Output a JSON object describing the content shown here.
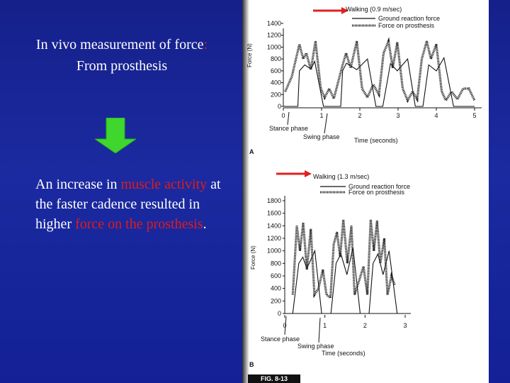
{
  "slide": {
    "title_part1": "In vivo measurement of force",
    "title_colon": ":",
    "title_line2": "From prosthesis",
    "body_white1": "An increase in ",
    "body_red1": "muscle activity",
    "body_white2": " at the faster cadence resulted in higher ",
    "body_red2": "force on the prosthesis",
    "body_white3": ".",
    "colors": {
      "background": "#1b2aa0",
      "text": "#ffffff",
      "highlight": "#e01c1c",
      "arrow": "#3fd62e"
    }
  },
  "figure": {
    "label": "FIG. 8-13",
    "panels": [
      {
        "panel_letter": "A",
        "title": "Walking (0.9 m/sec)",
        "legend": [
          "Ground reaction force",
          "Force on prosthesis"
        ],
        "ylabel": "Force (N)",
        "xlabel": "Time (seconds)",
        "y_ticks": [
          "1400",
          "1200",
          "1000",
          "800",
          "600",
          "400",
          "200",
          "0"
        ],
        "x_ticks": [
          "0",
          "1",
          "2",
          "3",
          "4",
          "5"
        ],
        "annotations": [
          "Stance phase",
          "Swing phase"
        ]
      },
      {
        "panel_letter": "B",
        "title": "Walking (1.3 m/sec)",
        "legend": [
          "Ground reaction force",
          "Force on prosthesis"
        ],
        "ylabel": "Force (N)",
        "xlabel": "Time (seconds)",
        "y_ticks": [
          "1800",
          "1600",
          "1400",
          "1200",
          "1000",
          "800",
          "600",
          "400",
          "200",
          "0"
        ],
        "x_ticks": [
          "0",
          "1",
          "2",
          "3"
        ],
        "annotations": [
          "Stance phase",
          "Swing phase"
        ]
      }
    ],
    "chart_data": [
      {
        "type": "line",
        "title": "Walking (0.9 m/sec)",
        "xlabel": "Time (seconds)",
        "ylabel": "Force (N)",
        "xlim": [
          0,
          5
        ],
        "ylim": [
          0,
          1400
        ],
        "series": [
          {
            "name": "Ground reaction force",
            "x": [
              0,
              0.12,
              0.38,
              0.42,
              0.56,
              0.72,
              0.82,
              1.05,
              1.25,
              1.5,
              1.55,
              1.65,
              1.92,
              2.2,
              2.42,
              2.45,
              2.6,
              2.8,
              2.98,
              3.25,
              3.45,
              3.5,
              3.65,
              3.8,
              4.0,
              4.2,
              4.45,
              4.5,
              4.65,
              4.85,
              5.0
            ],
            "y": [
              0,
              0,
              0,
              600,
              700,
              630,
              760,
              0,
              0,
              0,
              600,
              730,
              620,
              800,
              0,
              0,
              0,
              720,
              600,
              800,
              0,
              0,
              0,
              700,
              600,
              820,
              0,
              0,
              0,
              0,
              0
            ]
          },
          {
            "name": "Force on prosthesis",
            "x": [
              0.05,
              0.22,
              0.42,
              0.52,
              0.6,
              0.72,
              0.84,
              0.98,
              1.08,
              1.2,
              1.32,
              1.55,
              1.64,
              1.76,
              1.92,
              2.06,
              2.2,
              2.35,
              2.5,
              2.62,
              2.75,
              2.86,
              2.98,
              3.12,
              3.25,
              3.38,
              3.5,
              3.62,
              3.75,
              3.86,
              4.0,
              4.14,
              4.25,
              4.4,
              4.55,
              4.7,
              4.85,
              5.0
            ],
            "y": [
              250,
              500,
              1050,
              800,
              900,
              620,
              1100,
              300,
              150,
              300,
              130,
              700,
              900,
              650,
              1100,
              300,
              150,
              370,
              200,
              900,
              1100,
              650,
              1080,
              300,
              100,
              250,
              120,
              800,
              1100,
              800,
              1050,
              250,
              100,
              250,
              120,
              300,
              300,
              100
            ]
          }
        ]
      },
      {
        "type": "line",
        "title": "Walking (1.3 m/sec)",
        "xlabel": "Time (seconds)",
        "ylabel": "Force (N)",
        "xlim": [
          0,
          3
        ],
        "ylim": [
          0,
          1800
        ],
        "series": [
          {
            "name": "Ground reaction force",
            "x": [
              0,
              0.05,
              0.2,
              0.35,
              0.45,
              0.55,
              0.75,
              0.92,
              1.02,
              1.15,
              1.28,
              1.4,
              1.55,
              1.7,
              1.88,
              1.98,
              2.1,
              2.2,
              2.32,
              2.45,
              2.6,
              2.8,
              3.0
            ],
            "y": [
              0,
              0,
              0,
              800,
              900,
              720,
              1000,
              0,
              0,
              0,
              800,
              950,
              620,
              1050,
              0,
              0,
              0,
              800,
              950,
              620,
              1000,
              0,
              0
            ]
          },
          {
            "name": "Force on prosthesis",
            "x": [
              0.2,
              0.3,
              0.38,
              0.46,
              0.55,
              0.65,
              0.74,
              0.84,
              0.95,
              1.04,
              1.14,
              1.22,
              1.3,
              1.38,
              1.46,
              1.56,
              1.66,
              1.74,
              1.84,
              1.96,
              2.06,
              2.14,
              2.22,
              2.3,
              2.38,
              2.48,
              2.56,
              2.66,
              2.74
            ],
            "y": [
              300,
              1400,
              1000,
              1450,
              700,
              1350,
              300,
              400,
              700,
              300,
              250,
              1100,
              1300,
              900,
              1500,
              800,
              1400,
              300,
              500,
              750,
              300,
              1500,
              1000,
              1480,
              800,
              1200,
              300,
              600,
              450
            ]
          }
        ]
      }
    ]
  }
}
